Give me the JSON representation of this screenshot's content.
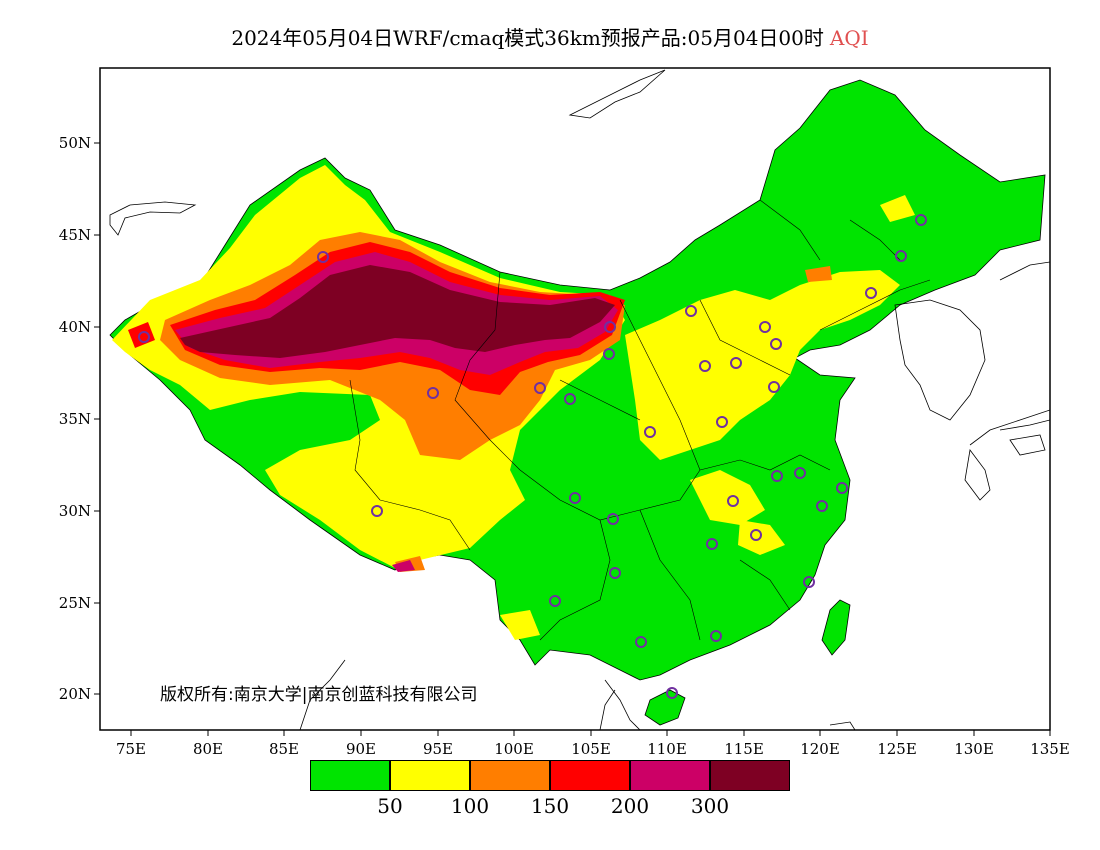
{
  "title": {
    "main": "2024年05月04日WRF/cmaq模式36km预报产品:05月04日00时",
    "variable": "AQI",
    "variable_color": "#e05050"
  },
  "axes": {
    "lat_ticks": [
      "50N",
      "45N",
      "40N",
      "35N",
      "30N",
      "25N",
      "20N"
    ],
    "lon_ticks": [
      "75E",
      "80E",
      "85E",
      "90E",
      "95E",
      "100E",
      "105E",
      "110E",
      "115E",
      "120E",
      "125E",
      "130E",
      "135E"
    ],
    "lat_range": [
      18,
      54
    ],
    "lon_range": [
      73,
      135
    ]
  },
  "copyright": "版权所有:南京大学|南京创蓝科技有限公司",
  "legend": {
    "colors": [
      "#00e400",
      "#ffff00",
      "#ff7e00",
      "#ff0000",
      "#cc0066",
      "#7e0023"
    ],
    "tick_labels": [
      "50",
      "100",
      "150",
      "200",
      "300"
    ]
  },
  "stations_color": "#7030a0"
}
